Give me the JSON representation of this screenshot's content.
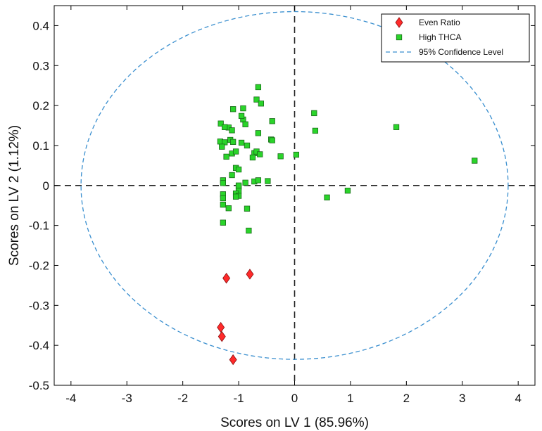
{
  "chart_data": {
    "type": "scatter",
    "title": "",
    "xlabel": "Scores on LV 1 (85.96%)",
    "ylabel": "Scores on LV 2 (1.12%)",
    "xlim": [
      -4.3,
      4.3
    ],
    "ylim": [
      -0.5,
      0.45
    ],
    "xticks": [
      -4,
      -3,
      -2,
      -1,
      0,
      1,
      2,
      3,
      4
    ],
    "xtick_labels": [
      "-4",
      "-3",
      "-2",
      "-1",
      "0",
      "1",
      "2",
      "3",
      "4"
    ],
    "yticks": [
      -0.5,
      -0.4,
      -0.3,
      -0.2,
      -0.1,
      0,
      0.1,
      0.2,
      0.3,
      0.4
    ],
    "ytick_labels": [
      "-0.5",
      "-0.4",
      "-0.3",
      "-0.2",
      "-0.1",
      "0",
      "0.1",
      "0.2",
      "0.3",
      "0.4"
    ],
    "legend_position": "top-right",
    "reference_lines": {
      "x": 0,
      "y": 0,
      "style": "dashed",
      "color": "#222222"
    },
    "ellipse": {
      "name": "95% Confidence Level",
      "cx": 0,
      "cy": 0,
      "rx": 3.82,
      "ry": 0.435,
      "color": "#3a8fcf"
    },
    "series": [
      {
        "name": "Even Ratio",
        "marker": "diamond",
        "color": "#ff2a2a",
        "points": [
          [
            -1.22,
            -0.232
          ],
          [
            -0.8,
            -0.222
          ],
          [
            -1.32,
            -0.355
          ],
          [
            -1.3,
            -0.378
          ],
          [
            -1.1,
            -0.436
          ]
        ]
      },
      {
        "name": "High THCA",
        "marker": "square",
        "color": "#2ad42a",
        "points": [
          [
            -0.65,
            0.246
          ],
          [
            -0.68,
            0.215
          ],
          [
            -0.6,
            0.205
          ],
          [
            -0.92,
            0.193
          ],
          [
            -1.1,
            0.191
          ],
          [
            -0.92,
            0.165
          ],
          [
            -0.95,
            0.174
          ],
          [
            -0.88,
            0.153
          ],
          [
            -0.4,
            0.161
          ],
          [
            -1.32,
            0.155
          ],
          [
            -1.18,
            0.145
          ],
          [
            -1.12,
            0.138
          ],
          [
            -1.25,
            0.146
          ],
          [
            0.35,
            0.181
          ],
          [
            0.37,
            0.137
          ],
          [
            1.82,
            0.146
          ],
          [
            -0.65,
            0.131
          ],
          [
            -0.42,
            0.115
          ],
          [
            -0.4,
            0.113
          ],
          [
            -0.95,
            0.107
          ],
          [
            -1.33,
            0.11
          ],
          [
            -1.25,
            0.108
          ],
          [
            -1.15,
            0.114
          ],
          [
            -1.1,
            0.109
          ],
          [
            -1.3,
            0.097
          ],
          [
            -0.85,
            0.1
          ],
          [
            -0.72,
            0.081
          ],
          [
            -0.68,
            0.085
          ],
          [
            -0.62,
            0.078
          ],
          [
            -1.12,
            0.08
          ],
          [
            -1.05,
            0.085
          ],
          [
            -1.22,
            0.072
          ],
          [
            -0.25,
            0.073
          ],
          [
            0.03,
            0.077
          ],
          [
            3.22,
            0.062
          ],
          [
            -0.75,
            0.07
          ],
          [
            -1.05,
            0.044
          ],
          [
            -1.0,
            0.04
          ],
          [
            -1.12,
            0.026
          ],
          [
            -1.28,
            0.013
          ],
          [
            -1.28,
            0.006
          ],
          [
            -0.88,
            0.007
          ],
          [
            -0.72,
            0.01
          ],
          [
            -0.65,
            0.013
          ],
          [
            -0.48,
            0.011
          ],
          [
            -1.0,
            -0.003
          ],
          [
            -1.0,
            -0.013
          ],
          [
            -1.05,
            -0.02
          ],
          [
            -1.0,
            -0.026
          ],
          [
            -1.05,
            -0.028
          ],
          [
            -1.28,
            -0.022
          ],
          [
            -1.28,
            -0.032
          ],
          [
            -1.28,
            -0.048
          ],
          [
            -1.18,
            -0.057
          ],
          [
            -0.85,
            -0.058
          ],
          [
            0.58,
            -0.03
          ],
          [
            0.95,
            -0.013
          ],
          [
            -1.28,
            -0.093
          ],
          [
            -0.82,
            -0.113
          ],
          [
            -1.0,
            0.0
          ]
        ]
      }
    ]
  }
}
